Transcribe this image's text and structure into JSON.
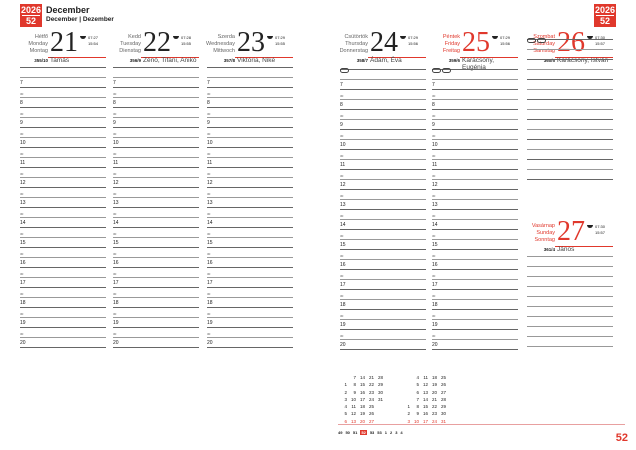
{
  "header": {
    "year": "2026",
    "week": "52",
    "month": "December",
    "month_sub": "December | Dezember"
  },
  "page_number": "52",
  "days": [
    {
      "names": [
        "Hétfő",
        "Monday",
        "Montag"
      ],
      "day": "21",
      "sunrise": "07:27",
      "sunset": "15:54",
      "doy": "355/10",
      "nameday": "Tamás",
      "red": false
    },
    {
      "names": [
        "Kedd",
        "Tuesday",
        "Dienstag"
      ],
      "day": "22",
      "sunrise": "07:28",
      "sunset": "15:55",
      "doy": "356/9",
      "nameday": "Zénó, Tifani, Anikó",
      "red": false
    },
    {
      "names": [
        "Szerda",
        "Wednesday",
        "Mittwoch"
      ],
      "day": "23",
      "sunrise": "07:29",
      "sunset": "15:55",
      "doy": "357/8",
      "nameday": "Viktória, Niké",
      "red": false
    },
    {
      "names": [
        "Csütörtök",
        "Thursday",
        "Donnerstag"
      ],
      "day": "24",
      "sunrise": "07:29",
      "sunset": "15:56",
      "doy": "358/7",
      "nameday": "Ádám, Éva",
      "red": false
    },
    {
      "names": [
        "Péntek",
        "Friday",
        "Freitag"
      ],
      "day": "25",
      "sunrise": "07:29",
      "sunset": "15:56",
      "doy": "359/6",
      "nameday": "Karácsony, Eugénia",
      "red": true
    },
    {
      "names": [
        "Szombat",
        "Saturday",
        "Samstag"
      ],
      "day": "26",
      "sunrise": "07:30",
      "sunset": "15:57",
      "doy": "360/5",
      "nameday": "Karácsony, István",
      "red": true
    },
    {
      "names": [
        "Vasárnap",
        "Sunday",
        "Sonntag"
      ],
      "day": "27",
      "sunrise": "07:30",
      "sunset": "15:57",
      "doy": "361/4",
      "nameday": "János",
      "red": true
    }
  ],
  "hours": [
    "7",
    "8",
    "9",
    "10",
    "11",
    "12",
    "13",
    "14",
    "15",
    "16",
    "17",
    "18",
    "19",
    "20"
  ],
  "half_label": "30",
  "mini_calendar": {
    "december": [
      [
        "",
        "7",
        "14",
        "21",
        "28"
      ],
      [
        "1",
        "8",
        "15",
        "22",
        "29"
      ],
      [
        "2",
        "9",
        "16",
        "23",
        "30"
      ],
      [
        "3",
        "10",
        "17",
        "24",
        "31"
      ],
      [
        "4",
        "11",
        "18",
        "25",
        ""
      ],
      [
        "5",
        "12",
        "19",
        "26",
        ""
      ],
      [
        "6",
        "13",
        "20",
        "27",
        ""
      ]
    ],
    "january": [
      [
        "",
        "4",
        "11",
        "18",
        "25"
      ],
      [
        "",
        "5",
        "12",
        "19",
        "26"
      ],
      [
        "",
        "6",
        "13",
        "20",
        "27"
      ],
      [
        "",
        "7",
        "14",
        "21",
        "28"
      ],
      [
        "1",
        "8",
        "15",
        "22",
        "29"
      ],
      [
        "2",
        "9",
        "16",
        "23",
        "30"
      ],
      [
        "3",
        "10",
        "17",
        "24",
        "31"
      ]
    ],
    "weeks": [
      "49",
      "50",
      "51",
      "52",
      "53",
      "53",
      "1",
      "2",
      "3",
      "4"
    ],
    "current_week": "52"
  },
  "colors": {
    "accent": "#e0382c"
  }
}
